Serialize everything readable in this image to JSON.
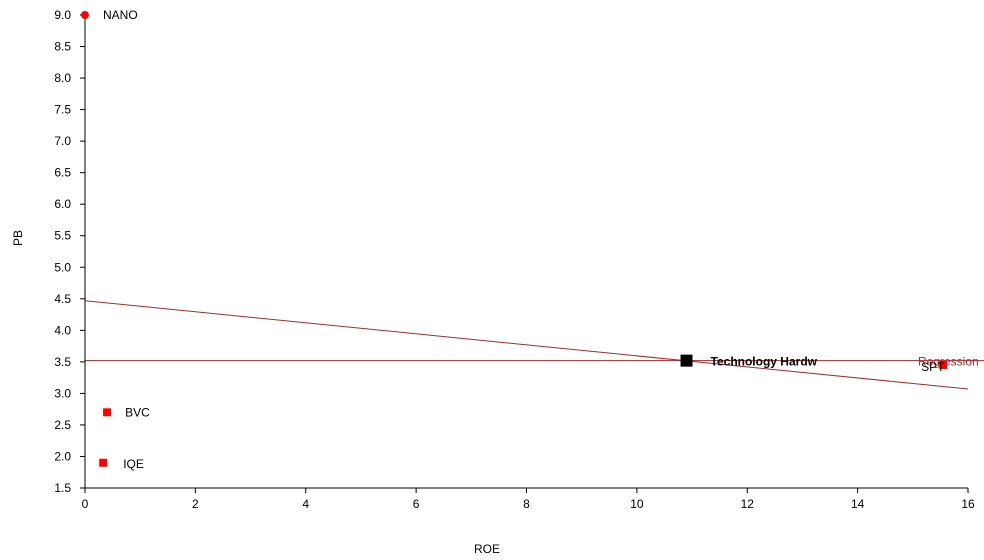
{
  "chart_data": {
    "type": "scatter",
    "xlabel": "ROE",
    "ylabel": "PB",
    "xlim": [
      0,
      16
    ],
    "ylim": [
      1.5,
      9.0
    ],
    "xticks": [
      0,
      2,
      4,
      6,
      8,
      10,
      12,
      14,
      16
    ],
    "yticks": [
      1.5,
      2.0,
      2.5,
      3.0,
      3.5,
      4.0,
      4.5,
      5.0,
      5.5,
      6.0,
      6.5,
      7.0,
      7.5,
      8.0,
      8.5,
      9.0
    ],
    "points": [
      {
        "label": "NANO",
        "x": 0.0,
        "y": 9.0,
        "marker": "circle",
        "color": "#ff0000"
      },
      {
        "label": "BVC",
        "x": 0.4,
        "y": 2.7,
        "marker": "square",
        "color": "#ff0000"
      },
      {
        "label": "IQE",
        "x": 0.33,
        "y": 1.9,
        "marker": "square",
        "color": "#ff0000"
      },
      {
        "label": "SPT",
        "x": 15.55,
        "y": 3.45,
        "marker": "square",
        "color": "#ff0000"
      },
      {
        "label": "Technology Hardw",
        "x": 10.9,
        "y": 3.52,
        "marker": "square-large",
        "color": "#000000",
        "bold": true
      }
    ],
    "regression": {
      "label": "Regression",
      "color": "#a52a2a",
      "x": [
        0,
        16
      ],
      "y": [
        4.47,
        3.07
      ]
    },
    "reference_line": {
      "y": 3.52,
      "color": "#a52a2a"
    },
    "grid": false
  }
}
